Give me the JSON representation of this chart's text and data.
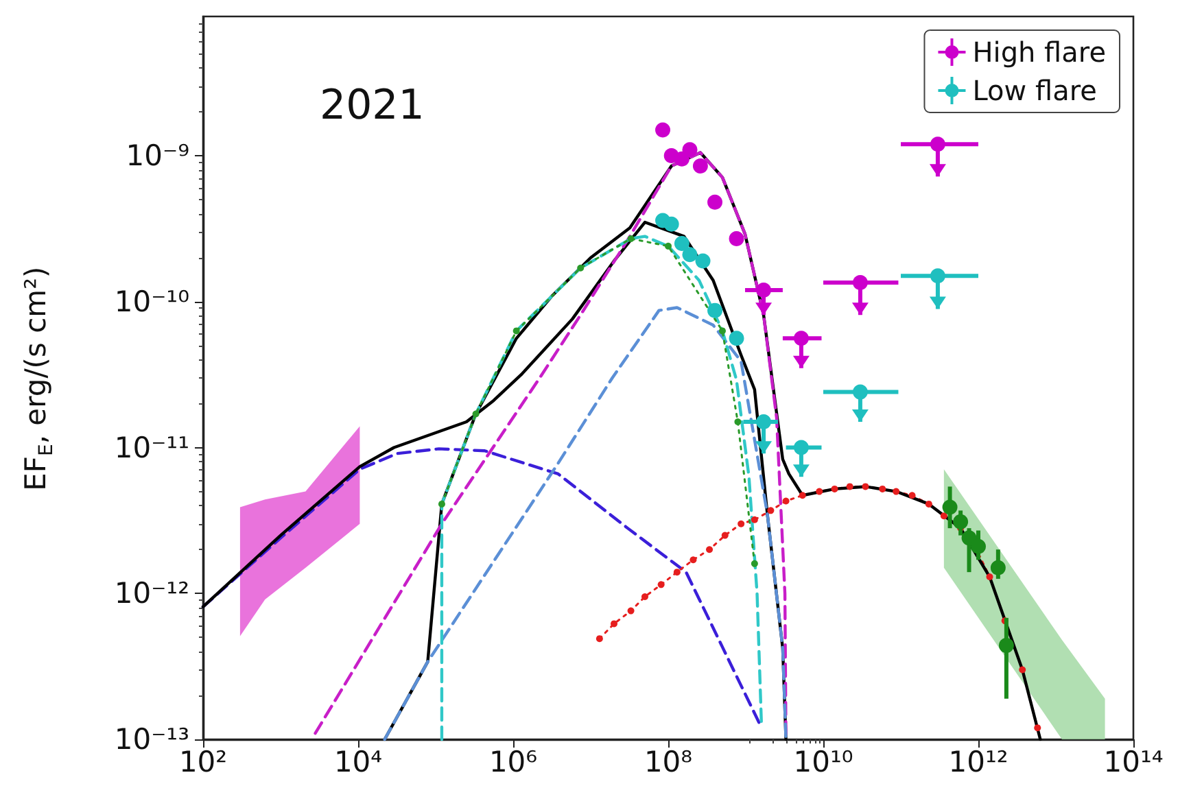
{
  "chart_data": {
    "type": "line",
    "ylabel": "EF$_{E}$, erg/(s cm²)",
    "annotations": [
      "2021"
    ],
    "log": "xy",
    "legend": "top right",
    "xlim": [
      100,
      100000000000000.0
    ],
    "ylim": [
      1e-13,
      9e-09
    ],
    "xticks": [
      {
        "value": 100,
        "label": "10²"
      },
      {
        "value": 10000.0,
        "label": "10⁴"
      },
      {
        "value": 1000000.0,
        "label": "10⁶"
      },
      {
        "value": 100000000.0,
        "label": "10⁸"
      },
      {
        "value": 10000000000.0,
        "label": "10¹⁰"
      },
      {
        "value": 1000000000000.0,
        "label": "10¹²"
      },
      {
        "value": 100000000000000.0,
        "label": "10¹⁴"
      }
    ],
    "yticks": [
      {
        "value": 1e-13,
        "label": "10⁻¹³"
      },
      {
        "value": 1e-12,
        "label": "10⁻¹²"
      },
      {
        "value": 1e-11,
        "label": "10⁻¹¹"
      },
      {
        "value": 1e-10,
        "label": "10⁻¹⁰"
      },
      {
        "value": 1e-09,
        "label": "10⁻⁹"
      }
    ],
    "series": [
      {
        "type": "area",
        "color": "#e55ad6",
        "x": [
          300,
          630,
          2100,
          10500
        ],
        "values": [
          null,
          null,
          null,
          null
        ],
        "lower": [
          5.1e-13,
          9.1e-13,
          1.5e-12,
          3e-12
        ],
        "upper": [
          3.9e-12,
          4.4e-12,
          5e-12,
          1.4e-11
        ]
      },
      {
        "type": "area",
        "color": "#a3d9a5",
        "x": [
          360000000000.0,
          12000000000000.0,
          43000000000000.0
        ],
        "values": [
          null,
          null,
          null
        ],
        "lower": [
          1.5e-12,
          1e-13,
          1e-13
        ],
        "upper": [
          7.1e-12,
          4.8e-13,
          1.9e-13
        ]
      },
      {
        "color": "#3b1fd9",
        "line_style": "dashed",
        "x": [
          100,
          1000,
          10500.0,
          32000.0,
          110000.0,
          430000.0,
          3800000.0,
          30000000.0,
          170000000.0,
          510000000.0,
          1600000000.0
        ],
        "values": [
          8.1e-13,
          2.4e-12,
          7.1e-12,
          9.1e-12,
          9.8e-12,
          9.5e-12,
          6.6e-12,
          2.8e-12,
          1.4e-12,
          4.2e-13,
          1.2e-13
        ]
      },
      {
        "color": "#e61e1e",
        "line_style": "dotted",
        "marker": "circle",
        "x": [
          13000000.0,
          20000000.0,
          33000000.0,
          50000000.0,
          81000000.0,
          130000000.0,
          210000000.0,
          340000000.0,
          540000000.0,
          870000000.0,
          1300000000.0,
          2100000000.0,
          3300000000.0,
          5400000000.0,
          8900000000.0,
          14000000000.0,
          22000000000.0,
          35000000000.0,
          58000000000.0,
          87000000000.0,
          140000000000.0,
          230000000000.0,
          360000000000.0,
          590000000000.0,
          950000000000.0,
          1400000000000.0,
          2200000000000.0,
          3700000000000.0,
          5800000000000.0
        ],
        "values": [
          4.9e-13,
          6.2e-13,
          7.6e-13,
          9.5e-13,
          1.15e-12,
          1.4e-12,
          1.7e-12,
          2e-12,
          2.5e-12,
          3e-12,
          3.2e-12,
          3.7e-12,
          4.3e-12,
          4.7e-12,
          5e-12,
          5.2e-12,
          5.4e-12,
          5.4e-12,
          5.2e-12,
          5e-12,
          4.7e-12,
          4.1e-12,
          3.4e-12,
          2.8e-12,
          2e-12,
          1.3e-12,
          6.5e-13,
          3e-13,
          1.2e-13
        ]
      },
      {
        "color": "#000000",
        "line_style": "solid",
        "x": [
          100,
          1000,
          10500.0,
          29000.0,
          250000.0,
          560000.0,
          1300000.0,
          5800000.0,
          20000000.0,
          50000000.0,
          160000000.0,
          380000000.0,
          870000000.0,
          1300000000.0,
          1900000000.0,
          3000000000.0,
          3300000000.0
        ],
        "values": [
          8.1e-13,
          2.5e-12,
          7.4e-12,
          1e-11,
          1.5e-11,
          2.1e-11,
          3.2e-11,
          7.6e-11,
          1.9e-10,
          3.5e-10,
          2.8e-10,
          1.4e-10,
          4.3e-11,
          2.5e-11,
          3.5e-12,
          4.2e-13,
          1e-13
        ]
      },
      {
        "color": "#000000",
        "line_style": "solid",
        "x": [
          22000.0,
          79000.0,
          120000.0,
          330000.0,
          1100000.0,
          3200000.0,
          10000000.0,
          32000000.0,
          110000000.0,
          260000000.0,
          500000000.0,
          980000000.0,
          1700000000.0,
          3000000000.0,
          3600000000.0,
          5400000000.0,
          14000000000.0,
          35000000000.0,
          87000000000.0,
          230000000000.0,
          590000000000.0,
          1400000000000.0,
          3700000000000.0,
          6300000000000.0
        ],
        "values": [
          1e-13,
          3.4e-13,
          4.1e-12,
          1.7e-11,
          5.6e-11,
          1.1e-10,
          2e-10,
          3.2e-10,
          8.5e-10,
          1.05e-09,
          7.1e-10,
          2.9e-10,
          8.1e-11,
          8.3e-12,
          6.6e-12,
          4.7e-12,
          5.2e-12,
          5.4e-12,
          5e-12,
          4.1e-12,
          2.8e-12,
          1.3e-12,
          3e-13,
          1e-13
        ]
      },
      {
        "color": "#c81ec8",
        "line_style": "dashed",
        "x": [
          2800,
          120000.0,
          2200000.0,
          7400000.0,
          32000000.0,
          110000000.0,
          260000000.0,
          500000000.0,
          980000000.0,
          1700000000.0,
          2500000000.0,
          3200000000.0,
          3300000000.0
        ],
        "values": [
          1.1e-13,
          3e-12,
          3e-11,
          8.1e-11,
          2.8e-10,
          8.5e-10,
          1.05e-09,
          7.1e-10,
          2.9e-10,
          8.1e-11,
          1.6e-11,
          1e-12,
          1e-13
        ]
      },
      {
        "color": "#5b8fd6",
        "line_style": "dashed",
        "x": [
          22000.0,
          79000.0,
          3800000.0,
          19000000.0,
          76000000.0,
          130000000.0,
          380000000.0,
          870000000.0,
          1900000000.0,
          3000000000.0,
          3300000000.0
        ],
        "values": [
          1e-13,
          3.4e-13,
          7.8e-12,
          3e-11,
          8.7e-11,
          9.1e-11,
          6.9e-11,
          3.9e-11,
          3.5e-12,
          4.2e-13,
          1e-13
        ]
      },
      {
        "color": "#30c8c8",
        "line_style": "dashed",
        "x": [
          120000.0,
          120000.0,
          330000.0,
          1100000.0,
          7400000.0,
          33000000.0,
          50000000.0,
          100000000.0,
          250000000.0,
          500000000.0,
          760000000.0,
          1100000000.0,
          1400000000.0,
          1600000000.0
        ],
        "values": [
          1e-13,
          4.1e-12,
          1.7e-11,
          6.3e-11,
          1.7e-10,
          2.7e-10,
          2.8e-10,
          2.4e-10,
          1.4e-10,
          6.3e-11,
          2.9e-11,
          6.3e-12,
          1e-12,
          1.2e-13
        ]
      },
      {
        "color": "#2a9a2a",
        "line_style": "dotted",
        "marker": "circle",
        "x": [
          120000.0,
          330000.0,
          1100000.0,
          7400000.0,
          33000000.0,
          100000000.0,
          500000000.0,
          790000000.0,
          1300000000.0
        ],
        "values": [
          4.1e-12,
          1.7e-11,
          6.3e-11,
          1.7e-10,
          2.7e-10,
          2.4e-10,
          6.3e-11,
          1.5e-11,
          1.6e-12
        ]
      },
      {
        "type": "scatter",
        "marker": "circle",
        "color": "#1a8a1a",
        "x": [
          430000000000.0,
          590000000000.0,
          760000000000.0,
          1000000000000.0,
          1800000000000.0,
          2300000000000.0
        ],
        "values": [
          3.9e-12,
          3.1e-12,
          2.4e-12,
          2.1e-12,
          1.5e-12,
          4.4e-13
        ],
        "errors": [
          [
            2.8e-12,
            5.4e-12
          ],
          [
            2.5e-12,
            3.7e-12
          ],
          [
            1.4e-12,
            2.8e-12
          ],
          [
            1.7e-12,
            2.7e-12
          ],
          [
            1.26e-12,
            2e-12
          ],
          [
            1.9e-13,
            6.8e-13
          ]
        ]
      },
      {
        "type": "scatter",
        "marker": "circle",
        "name": "High flare",
        "color": "#cc00cc",
        "x": [
          85000000.0,
          110000000.0,
          150000000.0,
          190000000.0,
          260000000.0,
          400000000.0,
          760000000.0,
          1700000000.0,
          5200000000.0,
          30000000000.0,
          300000000000.0
        ],
        "values": [
          1.5e-09,
          1e-09,
          9.5e-10,
          1.1e-09,
          8.5e-10,
          4.8e-10,
          2.7e-10,
          1.2e-10,
          5.6e-11,
          1.35e-10,
          1.2e-09
        ],
        "errors": [
          null,
          null,
          null,
          null,
          null,
          null,
          null,
          [
            8.1e-11,
            1.2e-10
          ],
          [
            3.5e-11,
            5.6e-11
          ],
          [
            8.1e-11,
            1.35e-10
          ],
          [
            7.2e-10,
            1.2e-09
          ]
        ],
        "xerrors": [
          null,
          null,
          null,
          null,
          null,
          null,
          null,
          [
            980000000.0,
            3000000000.0
          ],
          [
            3000000000.0,
            9500000000.0
          ],
          [
            10000000000.0,
            93000000000.0
          ],
          [
            100000000000.0,
            1000000000000.0
          ]
        ]
      },
      {
        "type": "scatter",
        "marker": "circle",
        "name": "Low flare",
        "color": "#1fbfbf",
        "x": [
          85000000.0,
          110000000.0,
          150000000.0,
          190000000.0,
          280000000.0,
          400000000.0,
          760000000.0,
          1700000000.0,
          5200000000.0,
          30000000000.0,
          300000000000.0
        ],
        "values": [
          3.6e-10,
          3.4e-10,
          2.5e-10,
          2.1e-10,
          1.9e-10,
          8.7e-11,
          5.6e-11,
          1.5e-11,
          1e-11,
          2.4e-11,
          1.5e-10
        ],
        "errors": [
          null,
          null,
          null,
          null,
          null,
          null,
          null,
          [
            9.1e-12,
            1.5e-11
          ],
          [
            6.3e-12,
            1e-11
          ],
          [
            1.5e-11,
            2.4e-11
          ],
          [
            8.9e-11,
            1.5e-10
          ]
        ],
        "xerrors": [
          null,
          null,
          null,
          null,
          null,
          null,
          null,
          [
            930000000.0,
            2600000000.0
          ],
          [
            3300000000.0,
            9500000000.0
          ],
          [
            10000000000.0,
            93000000000.0
          ],
          [
            100000000000.0,
            1000000000000.0
          ]
        ]
      }
    ]
  }
}
